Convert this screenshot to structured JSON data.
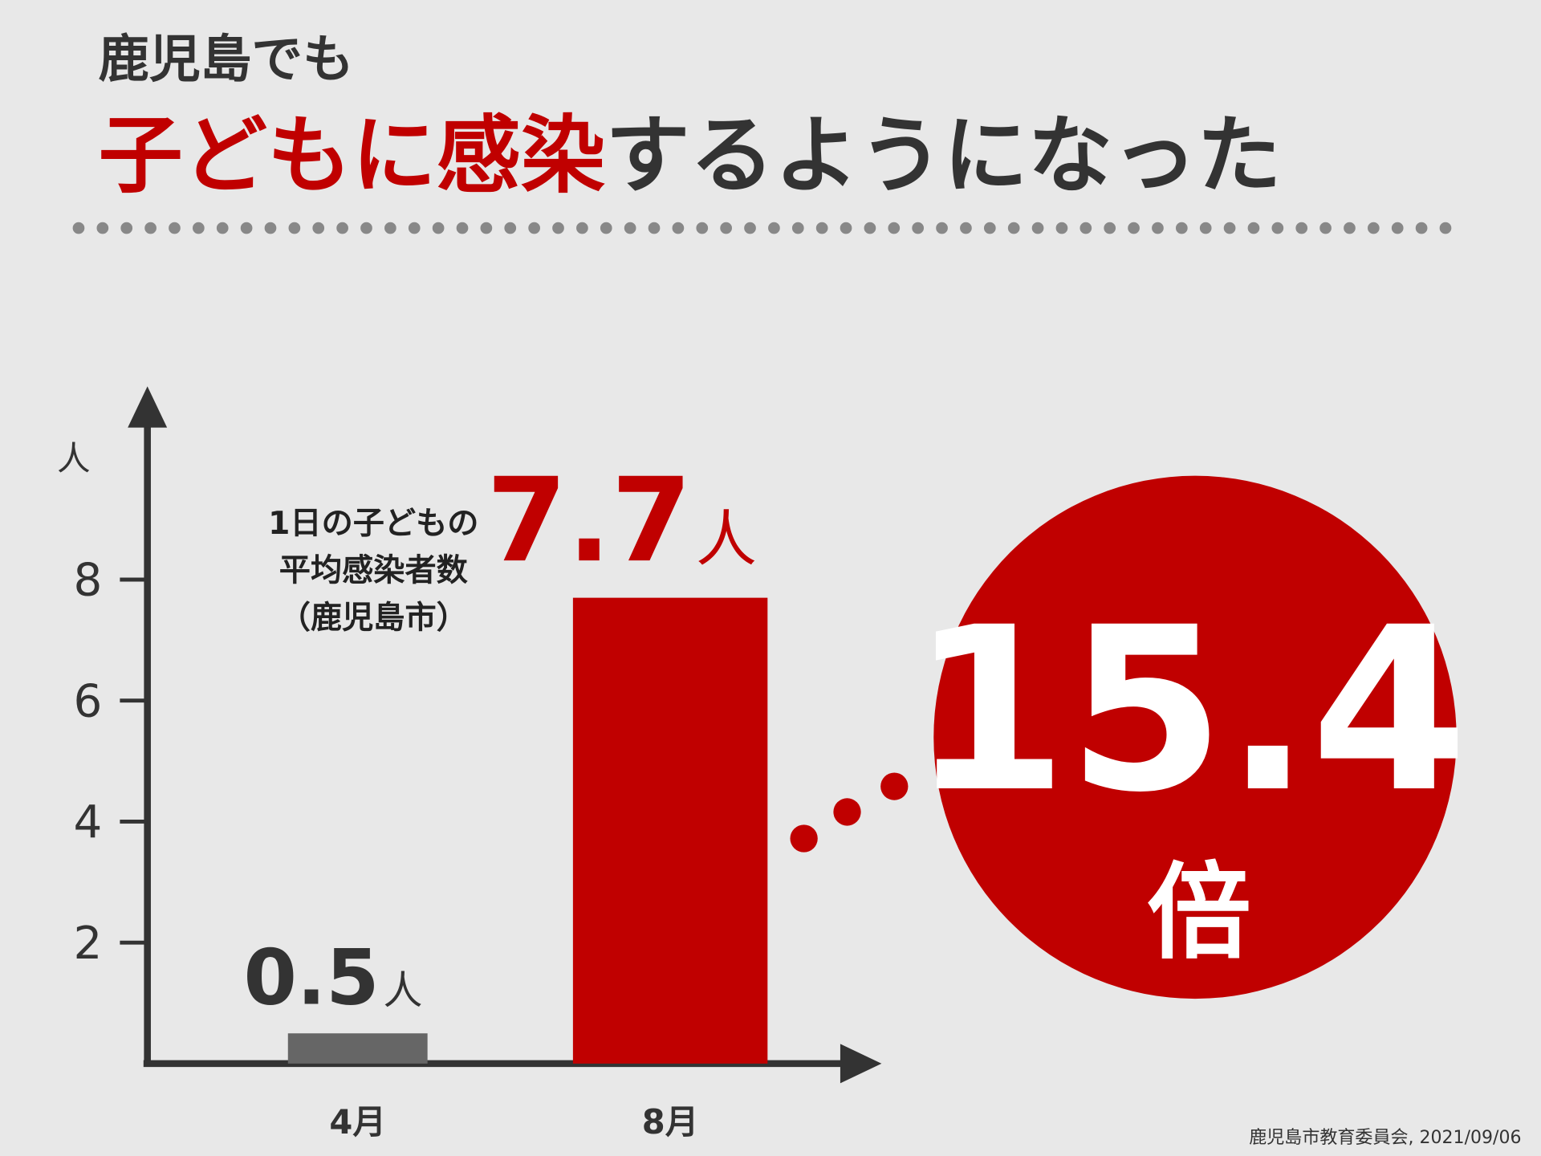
{
  "title": "鹿児島でも",
  "headline": [
    "子どもに感染",
    "するようになった"
  ],
  "chart_data": {
    "type": "bar",
    "categories": [
      "4月",
      "8月"
    ],
    "values": [
      0.5,
      7.7
    ],
    "colors": [
      "#666666",
      "#c00000"
    ],
    "ylabel": "人",
    "value_unit": "人",
    "ylim": [
      0,
      11
    ],
    "yticks": [
      2,
      4,
      6,
      8
    ]
  },
  "annotation": [
    "1日の子どもの",
    "平均感染者数",
    "（鹿児島市）"
  ],
  "ratio": {
    "value": "15.4",
    "unit": "倍"
  },
  "source": "鹿児島市教育委員会, 2021/09/06"
}
